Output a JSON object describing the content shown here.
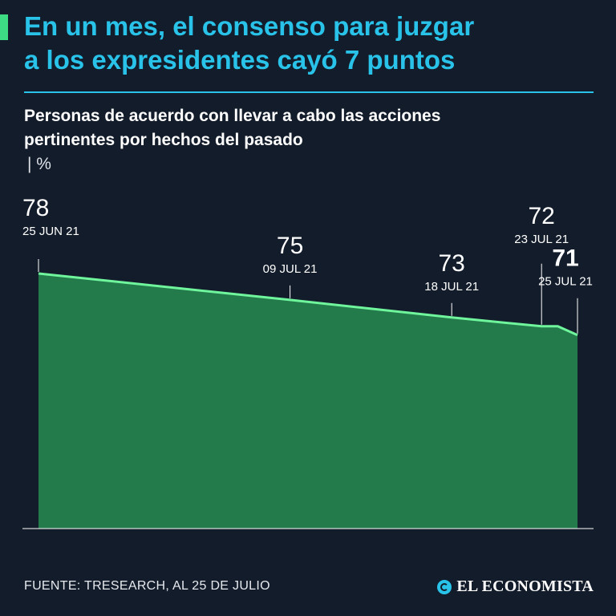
{
  "title": {
    "line1": "En un mes, el consenso para juzgar",
    "line2": "a los expresidentes cayó 7 puntos"
  },
  "subtitle": {
    "line1": "Personas de acuerdo con llevar a cabo las acciones",
    "line2": "pertinentes por hechos del pasado",
    "unit": "| %"
  },
  "chart_data": {
    "type": "area",
    "title": "Personas de acuerdo con llevar a cabo las acciones pertinentes por hechos del pasado",
    "ylabel": "%",
    "xlabel": "",
    "x": [
      "25 JUN 21",
      "09 JUL 21",
      "18 JUL 21",
      "23 JUL 21",
      "25 JUL 21"
    ],
    "x_days": [
      0,
      14,
      23,
      28,
      30
    ],
    "values": [
      78,
      75,
      73,
      72,
      71
    ],
    "value_labels": [
      "78",
      "75",
      "73",
      "72",
      "71"
    ],
    "highlight_index": 4,
    "ylim": [
      49,
      79
    ],
    "colors": {
      "fill": "#237a4b",
      "line": "#6ff59c",
      "label": "#ffffff",
      "axis": "#ffffff"
    }
  },
  "footer": {
    "source": "FUENTE: TRESEARCH, AL 25 DE JULIO",
    "logo": "EL ECONOMISTA"
  }
}
